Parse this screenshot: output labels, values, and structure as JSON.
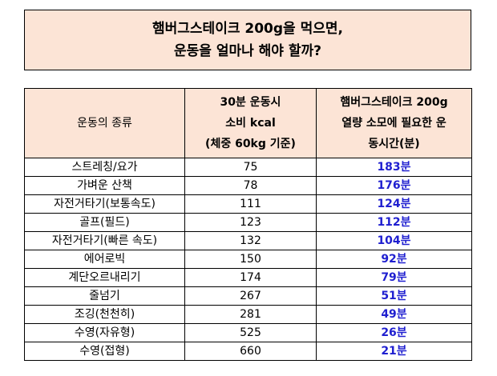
{
  "title": {
    "line1": "햄버그스테이크 200g을 먹으면,",
    "line2": "운동을 얼마나 해야 할까?"
  },
  "table": {
    "headers": {
      "type": "운동의 종류",
      "kcal": [
        "30분 운동시",
        "소비 kcal",
        "(체중 60kg 기준)"
      ],
      "time": [
        "햄버그스테이크 200g",
        "열량 소모에 필요한 운",
        "동시간(분)"
      ]
    },
    "rows": [
      {
        "exercise": "스트레칭/요가",
        "kcal": "75",
        "minutes": "183분"
      },
      {
        "exercise": "가벼운 산책",
        "kcal": "78",
        "minutes": "176분"
      },
      {
        "exercise": "자전거타기(보통속도)",
        "kcal": "111",
        "minutes": "124분"
      },
      {
        "exercise": "골프(필드)",
        "kcal": "123",
        "minutes": "112분"
      },
      {
        "exercise": "자전거타기(빠른 속도)",
        "kcal": "132",
        "minutes": "104분"
      },
      {
        "exercise": "에어로빅",
        "kcal": "150",
        "minutes": "92분"
      },
      {
        "exercise": "계단오르내리기",
        "kcal": "174",
        "minutes": "79분"
      },
      {
        "exercise": "줄넘기",
        "kcal": "267",
        "minutes": "51분"
      },
      {
        "exercise": "조깅(천천히)",
        "kcal": "281",
        "minutes": "49분"
      },
      {
        "exercise": "수영(자유형)",
        "kcal": "525",
        "minutes": "26분"
      },
      {
        "exercise": "수영(접형)",
        "kcal": "660",
        "minutes": "21분"
      }
    ]
  },
  "colors": {
    "header_bg": "#fce4d6",
    "minutes_text": "#1f1fd0"
  }
}
